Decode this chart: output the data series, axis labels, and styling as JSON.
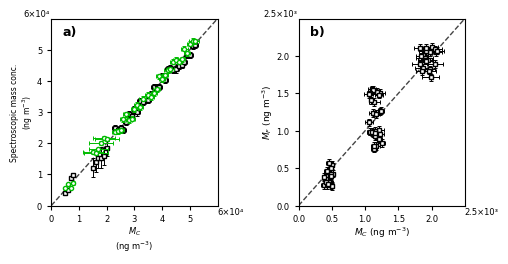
{
  "panel_a": {
    "xlim": [
      0,
      60000
    ],
    "ylim": [
      0,
      60000
    ],
    "xticks": [
      0,
      10000,
      20000,
      30000,
      40000,
      50000
    ],
    "yticks": [
      0,
      10000,
      20000,
      30000,
      40000,
      50000
    ],
    "xticklabels": [
      "0",
      "1",
      "2",
      "3",
      "4",
      "5"
    ],
    "yticklabels": [
      "0",
      "1",
      "2",
      "3",
      "4",
      "5"
    ],
    "xlabel": "M_C",
    "ylabel": "Spectroscopic mass conc.",
    "yunits": "(ng m⁻³)",
    "xunits": "(ng m⁻³)",
    "xsci": "6×10⁴",
    "ysci": "6×10⁴",
    "label": "a)",
    "seed_green": 101,
    "seed_black": 202,
    "green_color": "#00BB00",
    "black_color": "#000000",
    "cluster1_mc": [
      5000,
      6000,
      7000,
      8000
    ],
    "cluster2_mc": [
      15000,
      16000,
      17000,
      18000,
      19000,
      20000
    ],
    "cluster3_mc": [
      23000,
      24000,
      25000,
      26000,
      27000,
      28000,
      29000,
      30000,
      31000,
      32000,
      33000
    ],
    "cluster4_mc": [
      35000,
      36000,
      37000,
      38000,
      39000,
      40000,
      41000,
      42000,
      43000,
      44000,
      45000,
      46000,
      47000,
      48000,
      49000,
      50000,
      51000,
      52000
    ]
  },
  "panel_b": {
    "xlim": [
      0,
      2500
    ],
    "ylim": [
      0,
      2500
    ],
    "xticks": [
      0,
      500,
      1000,
      1500,
      2000
    ],
    "yticks": [
      0,
      500,
      1000,
      1500,
      2000
    ],
    "xticklabels": [
      "0.0",
      "0.5",
      "1.0",
      "1.5",
      "2.0"
    ],
    "yticklabels": [
      "0.0",
      "0.5",
      "1.0",
      "1.5",
      "2.0"
    ],
    "xlabel": "M_C",
    "ylabel": "M_F",
    "yunits": "(ng m⁻³)",
    "xunits": "(ng m⁻³)",
    "xsci": "2.5×10³",
    "ysci": "2.5×10³",
    "label": "b)",
    "black_color": "#000000",
    "cluster1_x_center": 450,
    "cluster1_x_spread": 80,
    "cluster1_y_min": 250,
    "cluster1_y_max": 640,
    "cluster1_n": 20,
    "cluster2_x_center": 1150,
    "cluster2_x_spread": 100,
    "cluster2_y_min": 750,
    "cluster2_y_max": 1600,
    "cluster2_n": 28,
    "cluster3_x_center": 1950,
    "cluster3_x_spread": 130,
    "cluster3_y_min": 1700,
    "cluster3_y_max": 2120,
    "cluster3_n": 22
  },
  "dashed_color": "#444444",
  "background": "#FFFFFF"
}
